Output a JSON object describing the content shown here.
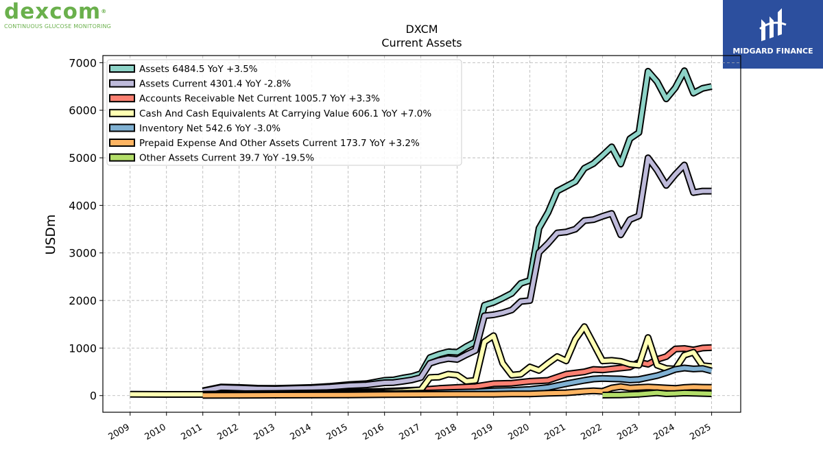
{
  "logos": {
    "left_brand": "dexcom",
    "left_registered": "®",
    "left_tagline": "CONTINUOUS GLUCOSE MONITORING",
    "right_text": "MIDGARD FINANCE",
    "right_color": "#2c4f9e"
  },
  "chart_data": {
    "type": "line",
    "title": "DXCM",
    "subtitle": "Current  Assets",
    "ylabel": "USDm",
    "xlabel": "",
    "ylim": [
      -350,
      7150
    ],
    "xlim": [
      2008.25,
      2025.8
    ],
    "yticks": [
      0,
      1000,
      2000,
      3000,
      4000,
      5000,
      6000,
      7000
    ],
    "xticks": [
      "2009",
      "2010",
      "2011",
      "2012",
      "2013",
      "2014",
      "2015",
      "2016",
      "2017",
      "2018",
      "2019",
      "2020",
      "2021",
      "2022",
      "2023",
      "2024",
      "2025"
    ],
    "grid": true,
    "legend_position": "top-left",
    "series": [
      {
        "name": "Assets",
        "legend": "Assets  6484.5 YoY +3.5%",
        "color": "#8dd3c7",
        "x": [
          2011.0,
          2011.5,
          2012.0,
          2012.5,
          2013.0,
          2013.5,
          2014.0,
          2014.5,
          2015.0,
          2015.5,
          2016.0,
          2016.25,
          2016.5,
          2016.75,
          2017.0,
          2017.25,
          2017.5,
          2017.75,
          2018.0,
          2018.25,
          2018.5,
          2018.75,
          2019.0,
          2019.25,
          2019.5,
          2019.75,
          2020.0,
          2020.25,
          2020.5,
          2020.75,
          2021.0,
          2021.25,
          2021.5,
          2021.75,
          2022.0,
          2022.25,
          2022.5,
          2022.75,
          2023.0,
          2023.25,
          2023.5,
          2023.75,
          2024.0,
          2024.25,
          2024.5,
          2024.75,
          2025.0
        ],
        "y": [
          100,
          180,
          170,
          155,
          150,
          160,
          170,
          195,
          230,
          250,
          320,
          330,
          370,
          400,
          460,
          800,
          870,
          920,
          910,
          1030,
          1130,
          1900,
          1960,
          2050,
          2150,
          2360,
          2420,
          3520,
          3850,
          4300,
          4400,
          4500,
          4780,
          4880,
          5050,
          5230,
          4870,
          5400,
          5530,
          6820,
          6600,
          6240,
          6470,
          6830,
          6360,
          6460,
          6500
        ]
      },
      {
        "name": "Assets Current",
        "legend": "Assets Current  4301.4 YoY -2.8%",
        "color": "#bebada",
        "x": [
          2011.0,
          2011.5,
          2012.0,
          2012.5,
          2013.0,
          2013.5,
          2014.0,
          2014.5,
          2015.0,
          2015.5,
          2016.0,
          2016.25,
          2016.5,
          2016.75,
          2017.0,
          2017.25,
          2017.5,
          2017.75,
          2018.0,
          2018.25,
          2018.5,
          2018.75,
          2019.0,
          2019.25,
          2019.5,
          2019.75,
          2020.0,
          2020.25,
          2020.5,
          2020.75,
          2021.0,
          2021.25,
          2021.5,
          2021.75,
          2022.0,
          2022.25,
          2022.5,
          2022.75,
          2023.0,
          2023.25,
          2023.5,
          2023.75,
          2024.0,
          2024.25,
          2024.5,
          2024.75,
          2025.0
        ],
        "y": [
          95,
          170,
          160,
          145,
          140,
          150,
          160,
          180,
          210,
          225,
          270,
          275,
          300,
          330,
          380,
          680,
          740,
          780,
          760,
          860,
          950,
          1680,
          1700,
          1740,
          1800,
          1980,
          2000,
          3010,
          3200,
          3420,
          3440,
          3500,
          3680,
          3700,
          3770,
          3830,
          3380,
          3700,
          3780,
          5000,
          4740,
          4420,
          4650,
          4850,
          4270,
          4300,
          4300
        ]
      },
      {
        "name": "Accounts Receivable Net Current",
        "legend": "Accounts Receivable Net Current  1005.7 YoY +3.3%",
        "color": "#fb8072",
        "x": [
          2011.0,
          2012.0,
          2013.0,
          2014.0,
          2015.0,
          2016.0,
          2017.0,
          2017.5,
          2018.0,
          2018.5,
          2019.0,
          2019.5,
          2020.0,
          2020.5,
          2021.0,
          2021.5,
          2021.75,
          2022.0,
          2022.5,
          2022.75,
          2023.0,
          2023.25,
          2023.5,
          2023.75,
          2024.0,
          2024.25,
          2024.5,
          2024.75,
          2025.0
        ],
        "y": [
          30,
          40,
          45,
          55,
          70,
          90,
          120,
          150,
          170,
          190,
          250,
          260,
          300,
          320,
          450,
          500,
          550,
          540,
          580,
          600,
          700,
          660,
          760,
          820,
          980,
          990,
          960,
          1000,
          1010
        ]
      },
      {
        "name": "Cash And Cash Equivalents At Carrying Value",
        "legend": "Cash And Cash Equivalents At Carrying Value  606.1 YoY +7.0%",
        "color": "#ffffb3",
        "x": [
          2009.0,
          2010.0,
          2011.0,
          2012.0,
          2013.0,
          2014.0,
          2015.0,
          2016.0,
          2016.5,
          2017.0,
          2017.25,
          2017.5,
          2017.75,
          2018.0,
          2018.25,
          2018.5,
          2018.75,
          2019.0,
          2019.25,
          2019.5,
          2019.75,
          2020.0,
          2020.25,
          2020.5,
          2020.75,
          2021.0,
          2021.25,
          2021.5,
          2021.75,
          2022.0,
          2022.25,
          2022.5,
          2022.75,
          2023.0,
          2023.25,
          2023.5,
          2023.75,
          2024.0,
          2024.25,
          2024.5,
          2024.75,
          2025.0
        ],
        "y": [
          30,
          25,
          25,
          30,
          35,
          40,
          50,
          70,
          90,
          120,
          380,
          390,
          450,
          430,
          300,
          320,
          1130,
          1260,
          680,
          430,
          450,
          600,
          530,
          680,
          820,
          730,
          1180,
          1450,
          1090,
          730,
          740,
          720,
          660,
          640,
          1220,
          640,
          570,
          560,
          850,
          910,
          630,
          610
        ]
      },
      {
        "name": "Inventory Net",
        "legend": "Inventory Net  542.6 YoY -3.0%",
        "color": "#80b1d3",
        "x": [
          2011.0,
          2012.0,
          2013.0,
          2014.0,
          2015.0,
          2016.0,
          2017.0,
          2018.0,
          2018.5,
          2019.0,
          2019.5,
          2020.0,
          2020.5,
          2021.0,
          2021.5,
          2021.75,
          2022.0,
          2022.5,
          2022.75,
          2023.0,
          2023.25,
          2023.5,
          2023.75,
          2024.0,
          2024.25,
          2024.5,
          2024.75,
          2025.0
        ],
        "y": [
          15,
          20,
          25,
          30,
          35,
          40,
          50,
          70,
          80,
          100,
          110,
          130,
          170,
          250,
          320,
          350,
          360,
          350,
          330,
          340,
          380,
          420,
          480,
          550,
          580,
          560,
          570,
          520
        ]
      },
      {
        "name": "Prepaid Expense And Other Assets Current",
        "legend": "Prepaid Expense And Other Assets Current  173.7 YoY +3.2%",
        "color": "#fdb462",
        "x": [
          2011.0,
          2012.0,
          2013.0,
          2014.0,
          2015.0,
          2016.0,
          2017.0,
          2018.0,
          2019.0,
          2019.5,
          2020.0,
          2020.5,
          2021.0,
          2021.5,
          2021.75,
          2022.0,
          2022.25,
          2022.5,
          2022.75,
          2023.0,
          2023.25,
          2023.5,
          2023.75,
          2024.0,
          2024.25,
          2024.5,
          2024.75,
          2025.0
        ],
        "y": [
          5,
          8,
          10,
          12,
          15,
          20,
          25,
          30,
          30,
          35,
          35,
          50,
          60,
          90,
          100,
          90,
          160,
          190,
          160,
          170,
          180,
          170,
          160,
          150,
          170,
          180,
          175,
          174
        ]
      },
      {
        "name": "Other Assets Current",
        "legend": "Other Assets Current  39.7 YoY -19.5%",
        "color": "#b3de69",
        "x": [
          2022.0,
          2022.5,
          2023.0,
          2023.5,
          2023.75,
          2024.0,
          2024.25,
          2024.5,
          2024.75,
          2025.0
        ],
        "y": [
          10,
          15,
          30,
          60,
          40,
          45,
          55,
          50,
          45,
          40
        ]
      }
    ]
  }
}
